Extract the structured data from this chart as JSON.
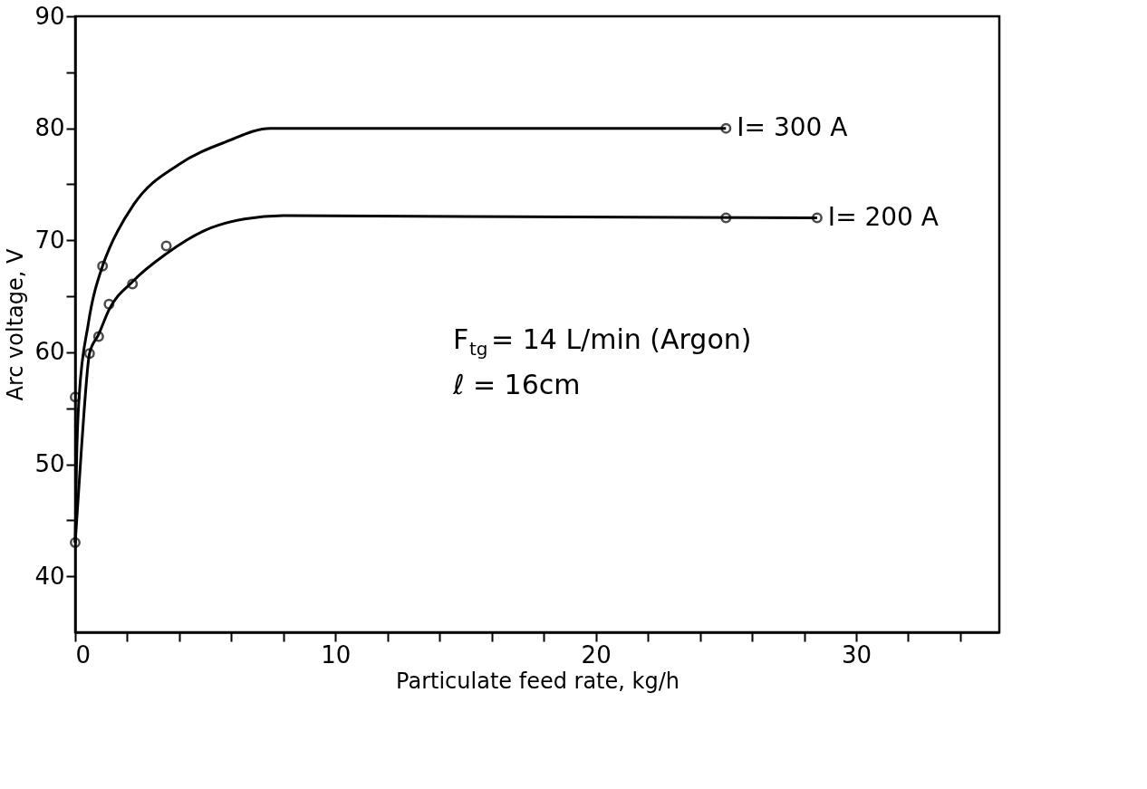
{
  "chart_data": {
    "type": "line",
    "xlabel": "Particulate feed rate, kg/h",
    "ylabel": "Arc voltage, V",
    "annotations": [
      "F$_{tg}$= 14 L/min (Argon)",
      "ℓ = 16cm"
    ],
    "xlim": [
      0,
      35.5
    ],
    "ylim": [
      35,
      90
    ],
    "xticks": [
      0,
      {
        "value": 2,
        "label": null
      },
      {
        "value": 4,
        "label": null
      },
      {
        "value": 6,
        "label": null
      },
      {
        "value": 8,
        "label": null
      },
      10,
      {
        "value": 12,
        "label": null
      },
      {
        "value": 14,
        "label": null
      },
      {
        "value": 16,
        "label": null
      },
      {
        "value": 18,
        "label": null
      },
      20,
      {
        "value": 22,
        "label": null
      },
      {
        "value": 24,
        "label": null
      },
      {
        "value": 26,
        "label": null
      },
      {
        "value": 28,
        "label": null
      },
      30,
      {
        "value": 32,
        "label": null
      },
      {
        "value": 34,
        "label": null
      }
    ],
    "yticks": [
      40,
      {
        "value": 45,
        "label": null
      },
      50,
      {
        "value": 55,
        "label": null
      },
      60,
      {
        "value": 65,
        "label": null
      },
      70,
      {
        "value": 75,
        "label": null
      },
      80,
      {
        "value": 85,
        "label": null
      },
      90
    ],
    "grid": false,
    "legend": false,
    "line_style": "solid",
    "series": [
      {
        "name": "I= 300 A",
        "marker": "none",
        "color": "#000000",
        "x": [
          0,
          0.05,
          0.15,
          0.5,
          1.05,
          1.3,
          2.25,
          4,
          5.8,
          7.5,
          25
        ],
        "values": [
          43,
          50,
          56,
          62.5,
          67.7,
          69.2,
          73.2,
          76.8,
          78.8,
          80,
          80
        ]
      },
      {
        "name": "I= 200 A",
        "marker": "none",
        "color": "#000000",
        "x": [
          0,
          0.2,
          0.35,
          0.55,
          0.9,
          1.3,
          2.2,
          3.5,
          5,
          6.5,
          8,
          28.5
        ],
        "values": [
          43,
          50,
          55,
          59.9,
          61.6,
          63.8,
          66.3,
          68.8,
          70.9,
          71.9,
          72.2,
          72
        ]
      },
      {
        "type": "scatter",
        "marker": "circle",
        "color": "#000000",
        "x": [
          0,
          1.05,
          25
        ],
        "values": [
          56,
          67.7,
          80
        ]
      },
      {
        "type": "scatter",
        "marker": "circle",
        "color": "#000000",
        "x": [
          0,
          0.55,
          0.9,
          1.3,
          2.2,
          3.5,
          25,
          28.5
        ],
        "values": [
          43,
          59.9,
          61.4,
          64.3,
          66.1,
          69.5,
          72,
          72
        ]
      }
    ]
  }
}
